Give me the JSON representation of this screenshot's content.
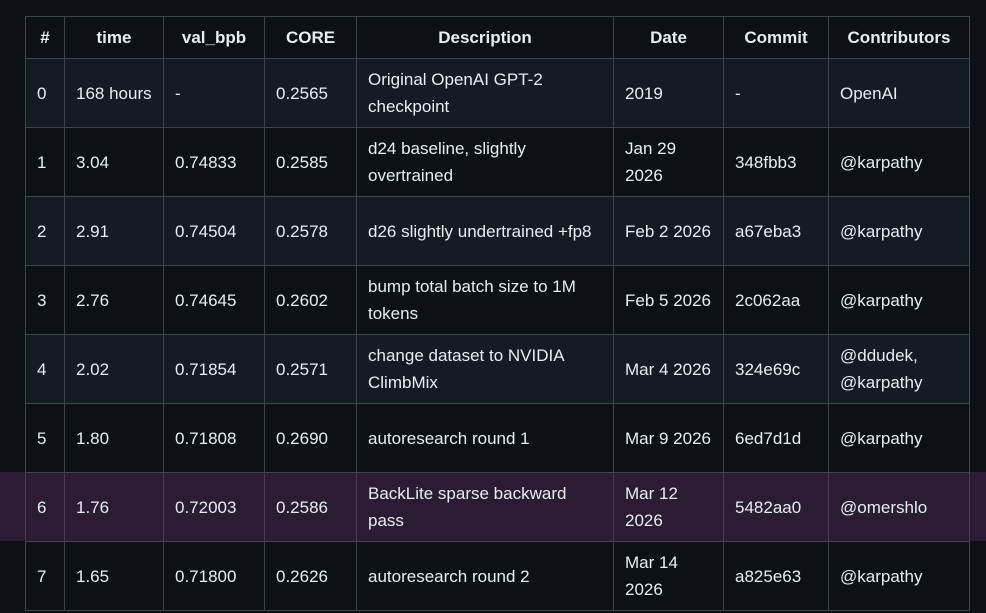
{
  "table": {
    "columns": [
      "#",
      "time",
      "val_bpb",
      "CORE",
      "Description",
      "Date",
      "Commit",
      "Contributors"
    ],
    "rows": [
      [
        "0",
        "168 hours",
        "-",
        "0.2565",
        "Original OpenAI GPT-2 checkpoint",
        "2019",
        "-",
        "OpenAI"
      ],
      [
        "1",
        "3.04",
        "0.74833",
        "0.2585",
        "d24 baseline, slightly overtrained",
        "Jan 29 2026",
        "348fbb3",
        "@karpathy"
      ],
      [
        "2",
        "2.91",
        "0.74504",
        "0.2578",
        "d26 slightly undertrained +fp8",
        "Feb 2 2026",
        "a67eba3",
        "@karpathy"
      ],
      [
        "3",
        "2.76",
        "0.74645",
        "0.2602",
        "bump total batch size to 1M tokens",
        "Feb 5 2026",
        "2c062aa",
        "@karpathy"
      ],
      [
        "4",
        "2.02",
        "0.71854",
        "0.2571",
        "change dataset to NVIDIA ClimbMix",
        "Mar 4 2026",
        "324e69c",
        "@ddudek, @karpathy"
      ],
      [
        "5",
        "1.80",
        "0.71808",
        "0.2690",
        "autoresearch round 1",
        "Mar 9 2026",
        "6ed7d1d",
        "@karpathy"
      ],
      [
        "6",
        "1.76",
        "0.72003",
        "0.2586",
        "BackLite sparse backward pass",
        "Mar 12 2026",
        "5482aa0",
        "@omershlo"
      ],
      [
        "7",
        "1.65",
        "0.71800",
        "0.2626",
        "autoresearch round 2",
        "Mar 14 2026",
        "a825e63",
        "@karpathy"
      ]
    ]
  }
}
